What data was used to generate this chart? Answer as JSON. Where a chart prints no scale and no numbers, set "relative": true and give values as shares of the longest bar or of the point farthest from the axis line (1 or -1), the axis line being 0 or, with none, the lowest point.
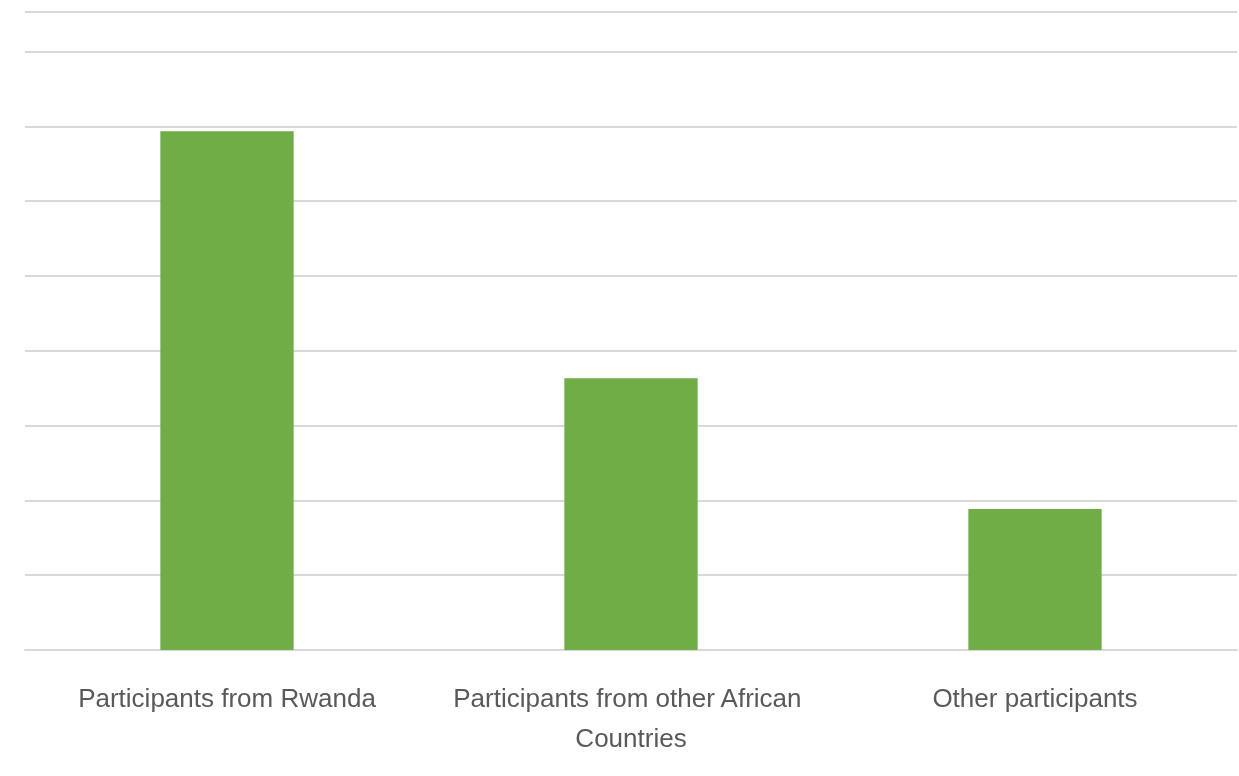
{
  "chart_data": {
    "type": "bar",
    "relative": true,
    "grid": true,
    "categories": [
      "Participants from Rwanda",
      "Participants from other African Countries",
      "Other participants"
    ],
    "values": [
      1,
      0.524,
      0.272
    ],
    "color": "#70ad47"
  }
}
